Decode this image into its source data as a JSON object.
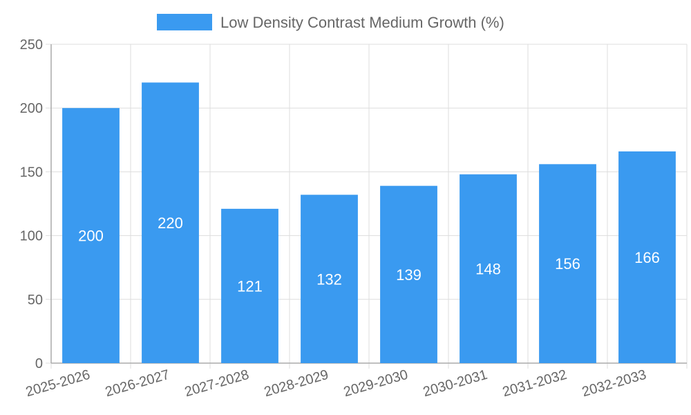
{
  "chart_data": {
    "type": "bar",
    "categories": [
      "2025-2026",
      "2026-2027",
      "2027-2028",
      "2028-2029",
      "2029-2030",
      "2030-2031",
      "2031-2032",
      "2032-2033"
    ],
    "series": [
      {
        "name": "Low Density Contrast Medium Growth (%)",
        "values": [
          200,
          220,
          121,
          132,
          139,
          148,
          156,
          166
        ],
        "color": "#3a9af0"
      }
    ],
    "title": "",
    "xlabel": "",
    "ylabel": "",
    "ylim": [
      0,
      250
    ],
    "yticks": [
      0,
      50,
      100,
      150,
      200,
      250
    ],
    "grid": true,
    "legend_position": "top-center",
    "data_labels": true
  }
}
